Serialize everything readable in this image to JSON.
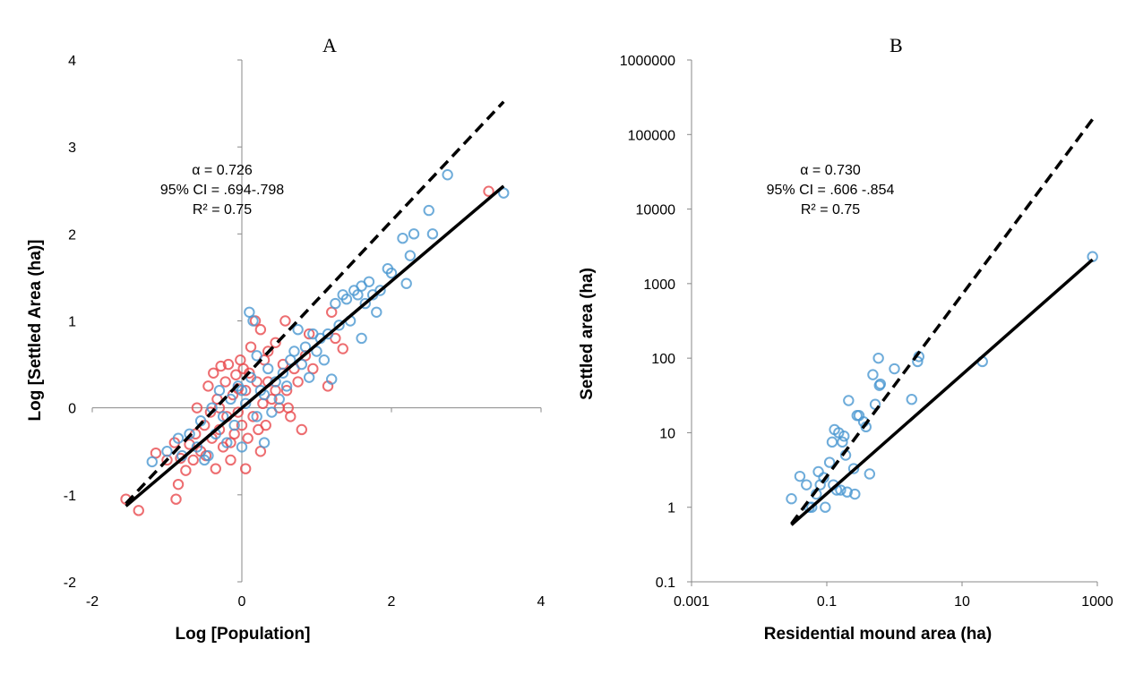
{
  "chart_data": [
    {
      "type": "scatter",
      "panel_label": "A",
      "xlabel": "Log [Population]",
      "ylabel": "Log [Settled Area (ha)]",
      "xlim": [
        -2,
        4
      ],
      "ylim": [
        -2,
        4
      ],
      "x_ticks": [
        "-2",
        "0",
        "2",
        "4"
      ],
      "y_ticks": [
        "-2",
        "-1",
        "0",
        "1",
        "2",
        "3",
        "4"
      ],
      "grid": false,
      "annotation": [
        "α = 0.726",
        "95% CI = .694-.798",
        "R² = 0.75"
      ],
      "marker_colors": {
        "red": "#e8484c",
        "blue": "#4a97d1"
      },
      "series": [
        {
          "marker": "open-circle",
          "color": "red",
          "points": [
            [
              -1.55,
              -1.05
            ],
            [
              -1.38,
              -1.18
            ],
            [
              -1.15,
              -0.52
            ],
            [
              -0.88,
              -1.05
            ],
            [
              -0.85,
              -0.88
            ],
            [
              -0.82,
              -0.58
            ],
            [
              -0.75,
              -0.72
            ],
            [
              -0.7,
              -0.42
            ],
            [
              -0.65,
              -0.6
            ],
            [
              -0.62,
              -0.3
            ],
            [
              -0.55,
              -0.5
            ],
            [
              -0.5,
              -0.2
            ],
            [
              -0.48,
              -0.55
            ],
            [
              -0.45,
              0.25
            ],
            [
              -0.42,
              -0.05
            ],
            [
              -0.4,
              -0.35
            ],
            [
              -0.38,
              0.4
            ],
            [
              -0.35,
              -0.7
            ],
            [
              -0.33,
              0.1
            ],
            [
              -0.3,
              -0.25
            ],
            [
              -0.28,
              0.48
            ],
            [
              -0.25,
              -0.45
            ],
            [
              -0.22,
              0.3
            ],
            [
              -0.2,
              -0.1
            ],
            [
              -0.18,
              0.5
            ],
            [
              -0.15,
              -0.6
            ],
            [
              -0.12,
              0.15
            ],
            [
              -0.1,
              -0.3
            ],
            [
              -0.08,
              0.38
            ],
            [
              -0.05,
              -0.05
            ],
            [
              -0.02,
              0.55
            ],
            [
              0.0,
              -0.2
            ],
            [
              0.02,
              0.45
            ],
            [
              0.05,
              -0.7
            ],
            [
              0.05,
              0.2
            ],
            [
              0.08,
              -0.35
            ],
            [
              0.1,
              0.4
            ],
            [
              0.12,
              0.7
            ],
            [
              0.15,
              -0.1
            ],
            [
              0.18,
              1.0
            ],
            [
              0.2,
              0.3
            ],
            [
              0.22,
              -0.25
            ],
            [
              0.25,
              0.9
            ],
            [
              0.28,
              0.05
            ],
            [
              0.3,
              0.55
            ],
            [
              0.32,
              -0.2
            ],
            [
              0.35,
              0.3
            ],
            [
              0.4,
              0.1
            ],
            [
              0.45,
              0.75
            ],
            [
              0.5,
              0.0
            ],
            [
              0.55,
              0.5
            ],
            [
              0.58,
              1.0
            ],
            [
              0.6,
              0.2
            ],
            [
              0.65,
              -0.1
            ],
            [
              0.7,
              0.45
            ],
            [
              0.75,
              0.3
            ],
            [
              0.8,
              -0.25
            ],
            [
              0.85,
              0.6
            ],
            [
              0.9,
              0.85
            ],
            [
              0.95,
              0.45
            ],
            [
              1.15,
              0.25
            ],
            [
              1.2,
              1.1
            ],
            [
              1.25,
              0.8
            ],
            [
              1.35,
              0.68
            ],
            [
              3.3,
              2.49
            ],
            [
              -0.6,
              0.0
            ],
            [
              -0.9,
              -0.4
            ],
            [
              -1.0,
              -0.6
            ],
            [
              -0.3,
              0.0
            ],
            [
              0.35,
              0.65
            ],
            [
              0.45,
              0.2
            ],
            [
              0.62,
              0.0
            ],
            [
              -0.15,
              -0.4
            ],
            [
              0.25,
              -0.5
            ],
            [
              -0.05,
              0.22
            ]
          ]
        },
        {
          "marker": "open-circle",
          "color": "blue",
          "points": [
            [
              -1.2,
              -0.62
            ],
            [
              -1.0,
              -0.5
            ],
            [
              -0.85,
              -0.35
            ],
            [
              -0.7,
              -0.3
            ],
            [
              -0.6,
              -0.45
            ],
            [
              -0.55,
              -0.15
            ],
            [
              -0.45,
              -0.55
            ],
            [
              -0.4,
              0.0
            ],
            [
              -0.35,
              -0.3
            ],
            [
              -0.3,
              0.2
            ],
            [
              -0.25,
              -0.1
            ],
            [
              -0.2,
              -0.4
            ],
            [
              -0.15,
              0.1
            ],
            [
              -0.1,
              -0.2
            ],
            [
              -0.05,
              0.25
            ],
            [
              0.0,
              -0.45
            ],
            [
              0.05,
              0.05
            ],
            [
              0.1,
              1.1
            ],
            [
              0.12,
              0.35
            ],
            [
              0.15,
              1.0
            ],
            [
              0.2,
              -0.1
            ],
            [
              0.25,
              0.2
            ],
            [
              0.3,
              0.15
            ],
            [
              0.35,
              0.45
            ],
            [
              0.4,
              -0.05
            ],
            [
              0.45,
              0.3
            ],
            [
              0.5,
              0.1
            ],
            [
              0.55,
              0.4
            ],
            [
              0.6,
              0.25
            ],
            [
              0.65,
              0.55
            ],
            [
              0.7,
              0.65
            ],
            [
              0.75,
              0.9
            ],
            [
              0.8,
              0.5
            ],
            [
              0.85,
              0.7
            ],
            [
              0.9,
              0.35
            ],
            [
              1.0,
              0.65
            ],
            [
              1.05,
              0.8
            ],
            [
              1.1,
              0.55
            ],
            [
              1.15,
              0.85
            ],
            [
              1.2,
              0.33
            ],
            [
              1.25,
              1.2
            ],
            [
              1.3,
              0.95
            ],
            [
              1.35,
              1.3
            ],
            [
              1.4,
              1.25
            ],
            [
              1.45,
              1.0
            ],
            [
              1.5,
              1.35
            ],
            [
              1.55,
              1.3
            ],
            [
              1.6,
              1.4
            ],
            [
              1.65,
              1.2
            ],
            [
              1.7,
              1.45
            ],
            [
              1.75,
              1.3
            ],
            [
              1.8,
              1.1
            ],
            [
              1.85,
              1.35
            ],
            [
              1.95,
              1.6
            ],
            [
              2.0,
              1.55
            ],
            [
              2.15,
              1.95
            ],
            [
              2.2,
              1.43
            ],
            [
              2.25,
              1.75
            ],
            [
              2.3,
              2.0
            ],
            [
              2.5,
              2.27
            ],
            [
              2.55,
              2.0
            ],
            [
              2.75,
              2.68
            ],
            [
              3.5,
              2.47
            ],
            [
              -0.8,
              -0.55
            ],
            [
              0.0,
              0.2
            ],
            [
              0.3,
              -0.4
            ],
            [
              -0.5,
              -0.6
            ],
            [
              1.6,
              0.8
            ],
            [
              0.2,
              0.6
            ],
            [
              0.95,
              0.85
            ]
          ]
        }
      ],
      "lines": [
        {
          "style": "dashed",
          "x": [
            -1.55,
            3.5
          ],
          "y": [
            -1.1,
            3.52
          ]
        },
        {
          "style": "solid",
          "x": [
            -1.55,
            3.5
          ],
          "y": [
            -1.13,
            2.55
          ]
        }
      ]
    },
    {
      "type": "scatter",
      "panel_label": "B",
      "xlabel": "Residential mound area (ha)",
      "ylabel": "Settled area (ha)",
      "xscale": "log",
      "yscale": "log",
      "xlim": [
        0.001,
        1000
      ],
      "ylim": [
        0.1,
        1000000
      ],
      "x_ticks": [
        "0.001",
        "0.1",
        "10",
        "1000"
      ],
      "y_ticks": [
        "0.1",
        "1",
        "10",
        "100",
        "1000",
        "10000",
        "100000",
        "1000000"
      ],
      "grid": false,
      "annotation": [
        "α = 0.730",
        "95% CI = .606 -.854",
        "R² = 0.75"
      ],
      "marker_colors": {
        "blue": "#4a97d1"
      },
      "series": [
        {
          "marker": "open-circle",
          "color": "blue",
          "points": [
            [
              0.03,
              1.3
            ],
            [
              0.04,
              2.6
            ],
            [
              0.05,
              2.0
            ],
            [
              0.055,
              1.0
            ],
            [
              0.06,
              1.0
            ],
            [
              0.07,
              1.5
            ],
            [
              0.075,
              3.0
            ],
            [
              0.08,
              2.0
            ],
            [
              0.09,
              2.5
            ],
            [
              0.095,
              1.0
            ],
            [
              0.11,
              4.0
            ],
            [
              0.12,
              7.5
            ],
            [
              0.125,
              2.0
            ],
            [
              0.13,
              11.0
            ],
            [
              0.14,
              1.7
            ],
            [
              0.15,
              10.0
            ],
            [
              0.16,
              1.7
            ],
            [
              0.17,
              7.5
            ],
            [
              0.18,
              9.0
            ],
            [
              0.19,
              5.0
            ],
            [
              0.2,
              1.6
            ],
            [
              0.21,
              27.0
            ],
            [
              0.25,
              3.3
            ],
            [
              0.26,
              1.5
            ],
            [
              0.28,
              17.0
            ],
            [
              0.3,
              17.0
            ],
            [
              0.35,
              14.0
            ],
            [
              0.38,
              12.0
            ],
            [
              0.43,
              2.8
            ],
            [
              0.48,
              60.0
            ],
            [
              0.52,
              24.0
            ],
            [
              0.58,
              100.0
            ],
            [
              0.6,
              43.0
            ],
            [
              0.62,
              45.0
            ],
            [
              1.0,
              72.0
            ],
            [
              1.8,
              28.0
            ],
            [
              2.2,
              90.0
            ],
            [
              2.3,
              105.0
            ],
            [
              20.0,
              90.0
            ],
            [
              850.0,
              2300.0
            ]
          ]
        }
      ],
      "lines": [
        {
          "style": "dashed",
          "x": [
            0.03,
            850
          ],
          "y": [
            0.6,
            160000
          ]
        },
        {
          "style": "solid",
          "x": [
            0.03,
            850
          ],
          "y": [
            0.58,
            2100
          ]
        }
      ]
    }
  ]
}
